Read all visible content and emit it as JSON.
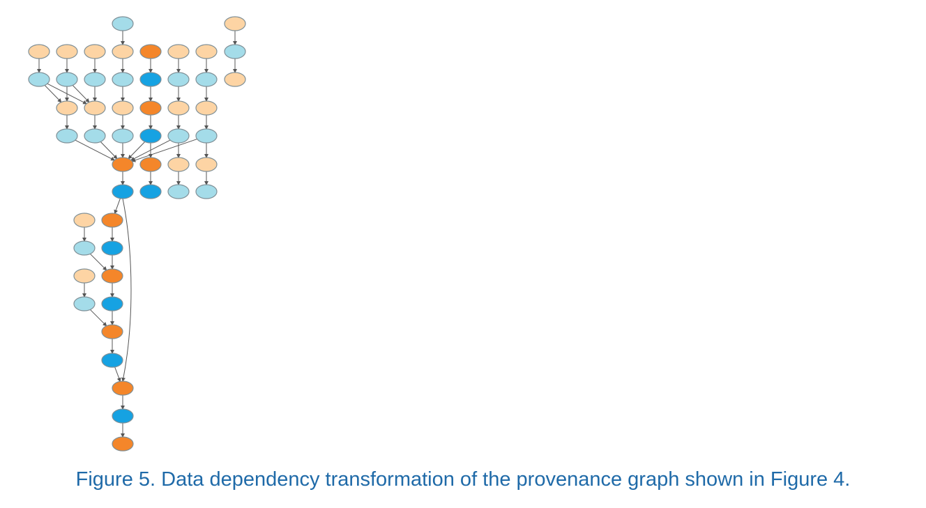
{
  "caption": "Figure 5. Data dependency transformation of the provenance graph shown in Figure 4.",
  "colors": {
    "light_orange": "#fdd4a4",
    "dark_orange": "#f4862a",
    "light_blue": "#a4dce9",
    "dark_blue": "#16a2e2",
    "edge": "#555555",
    "caption": "#1f6aa8"
  },
  "nodes": [
    {
      "id": "t0",
      "color": "light_blue"
    },
    {
      "id": "t1",
      "color": "light_orange"
    },
    {
      "id": "a0",
      "color": "light_orange"
    },
    {
      "id": "a1",
      "color": "light_orange"
    },
    {
      "id": "a2",
      "color": "light_orange"
    },
    {
      "id": "a3",
      "color": "light_orange"
    },
    {
      "id": "a4",
      "color": "dark_orange"
    },
    {
      "id": "a5",
      "color": "light_orange"
    },
    {
      "id": "a6",
      "color": "light_orange"
    },
    {
      "id": "a7",
      "color": "light_blue"
    },
    {
      "id": "b0",
      "color": "light_blue"
    },
    {
      "id": "b1",
      "color": "light_blue"
    },
    {
      "id": "b2",
      "color": "light_blue"
    },
    {
      "id": "b3",
      "color": "light_blue"
    },
    {
      "id": "b4",
      "color": "dark_blue"
    },
    {
      "id": "b5",
      "color": "light_blue"
    },
    {
      "id": "b6",
      "color": "light_blue"
    },
    {
      "id": "b7",
      "color": "light_orange"
    },
    {
      "id": "c1",
      "color": "light_orange"
    },
    {
      "id": "c2",
      "color": "light_orange"
    },
    {
      "id": "c3",
      "color": "light_orange"
    },
    {
      "id": "c4",
      "color": "dark_orange"
    },
    {
      "id": "c5",
      "color": "light_orange"
    },
    {
      "id": "c6",
      "color": "light_orange"
    },
    {
      "id": "d1",
      "color": "light_blue"
    },
    {
      "id": "d2",
      "color": "light_blue"
    },
    {
      "id": "d3",
      "color": "light_blue"
    },
    {
      "id": "d4",
      "color": "dark_blue"
    },
    {
      "id": "d5",
      "color": "light_blue"
    },
    {
      "id": "d6",
      "color": "light_blue"
    },
    {
      "id": "e3",
      "color": "dark_orange"
    },
    {
      "id": "e4",
      "color": "dark_orange"
    },
    {
      "id": "e5",
      "color": "light_orange"
    },
    {
      "id": "e6",
      "color": "light_orange"
    },
    {
      "id": "f3",
      "color": "dark_blue"
    },
    {
      "id": "f4",
      "color": "dark_blue"
    },
    {
      "id": "f5",
      "color": "light_blue"
    },
    {
      "id": "f6",
      "color": "light_blue"
    },
    {
      "id": "g0",
      "color": "light_orange"
    },
    {
      "id": "g1",
      "color": "dark_orange"
    },
    {
      "id": "h0",
      "color": "light_blue"
    },
    {
      "id": "h1",
      "color": "dark_blue"
    },
    {
      "id": "i0",
      "color": "light_orange"
    },
    {
      "id": "i1",
      "color": "dark_orange"
    },
    {
      "id": "j0",
      "color": "light_blue"
    },
    {
      "id": "j1",
      "color": "dark_blue"
    },
    {
      "id": "k1",
      "color": "dark_orange"
    },
    {
      "id": "l1",
      "color": "dark_blue"
    },
    {
      "id": "m1",
      "color": "dark_orange"
    },
    {
      "id": "n1",
      "color": "dark_blue"
    },
    {
      "id": "o1",
      "color": "dark_orange"
    }
  ],
  "edges": [
    [
      "t0",
      "a3"
    ],
    [
      "t1",
      "a7"
    ],
    [
      "a7",
      "b7"
    ],
    [
      "a0",
      "b0"
    ],
    [
      "a1",
      "b1"
    ],
    [
      "a2",
      "b2"
    ],
    [
      "a3",
      "b3"
    ],
    [
      "a4",
      "b4"
    ],
    [
      "a5",
      "b5"
    ],
    [
      "a6",
      "b6"
    ],
    [
      "b0",
      "c1"
    ],
    [
      "b0",
      "c2"
    ],
    [
      "b1",
      "c1"
    ],
    [
      "b1",
      "c2"
    ],
    [
      "b2",
      "c2"
    ],
    [
      "b3",
      "c3"
    ],
    [
      "b4",
      "c4"
    ],
    [
      "b5",
      "c5"
    ],
    [
      "b6",
      "c6"
    ],
    [
      "c1",
      "d1"
    ],
    [
      "c2",
      "d2"
    ],
    [
      "c3",
      "d3"
    ],
    [
      "c4",
      "d4"
    ],
    [
      "c5",
      "d5"
    ],
    [
      "c6",
      "d6"
    ],
    [
      "d1",
      "e3"
    ],
    [
      "d2",
      "e3"
    ],
    [
      "d3",
      "e3"
    ],
    [
      "d4",
      "e3"
    ],
    [
      "d5",
      "e3"
    ],
    [
      "d6",
      "e3"
    ],
    [
      "d4",
      "e4"
    ],
    [
      "d5",
      "e5"
    ],
    [
      "d6",
      "e6"
    ],
    [
      "e3",
      "f3"
    ],
    [
      "e4",
      "f4"
    ],
    [
      "e5",
      "f5"
    ],
    [
      "e6",
      "f6"
    ],
    [
      "f3",
      "g1"
    ],
    [
      "f3",
      "m1"
    ],
    [
      "g0",
      "h0"
    ],
    [
      "g1",
      "h1"
    ],
    [
      "h0",
      "i1"
    ],
    [
      "h1",
      "i1"
    ],
    [
      "i0",
      "j0"
    ],
    [
      "i1",
      "j1"
    ],
    [
      "j0",
      "k1"
    ],
    [
      "j1",
      "k1"
    ],
    [
      "k1",
      "l1"
    ],
    [
      "l1",
      "m1"
    ],
    [
      "m1",
      "n1"
    ],
    [
      "n1",
      "o1"
    ]
  ]
}
